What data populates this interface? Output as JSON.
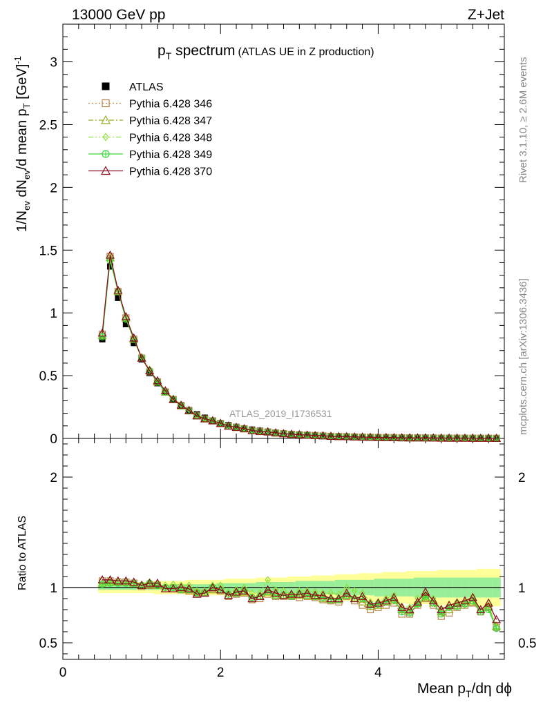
{
  "header": {
    "left": "13000 GeV pp",
    "right": "Z+Jet"
  },
  "side_text": {
    "top": "Rivet 3.1.10, ≥ 2.6M events",
    "bottom": "mcplots.cern.ch [arXiv:1306.3436]"
  },
  "watermark": "ATLAS_2019_I1736531",
  "colors": {
    "atlas": "#000000",
    "s346": "#b8864b",
    "s347": "#9aad1d",
    "s348": "#8ee03c",
    "s349": "#38d838",
    "s370": "#8b0a1e",
    "band_outer": "#ffff99",
    "band_inner": "#99ee99"
  },
  "chart_data": [
    {
      "type": "line",
      "title_main": "p",
      "title_sub": "T",
      "title_rest": " spectrum",
      "title_note": "(ATLAS UE in Z production)",
      "ylabel": "1/N_ev dN_ev/d mean p_T [GeV]^-1",
      "ylim": [
        0,
        3.3
      ],
      "xlim": [
        0,
        5.6
      ],
      "yticks": [
        "0",
        "0.5",
        "1",
        "1.5",
        "2",
        "2.5",
        "3"
      ],
      "legend_position": "top-left",
      "x": [
        0.5,
        0.6,
        0.7,
        0.8,
        0.9,
        1.0,
        1.1,
        1.2,
        1.3,
        1.4,
        1.5,
        1.6,
        1.7,
        1.8,
        1.9,
        2.0,
        2.1,
        2.2,
        2.3,
        2.4,
        2.5,
        2.6,
        2.7,
        2.8,
        2.9,
        3.0,
        3.1,
        3.2,
        3.3,
        3.4,
        3.5,
        3.6,
        3.7,
        3.8,
        3.9,
        4.0,
        4.1,
        4.2,
        4.3,
        4.4,
        4.5,
        4.6,
        4.7,
        4.8,
        4.9,
        5.0,
        5.1,
        5.2,
        5.3,
        5.4,
        5.5
      ],
      "series": [
        {
          "name": "ATLAS",
          "marker": "square",
          "values": [
            0.79,
            1.37,
            1.12,
            0.91,
            0.76,
            0.63,
            0.52,
            0.44,
            0.37,
            0.31,
            0.265,
            0.225,
            0.192,
            0.165,
            0.142,
            0.122,
            0.106,
            0.092,
            0.08,
            0.07,
            0.061,
            0.054,
            0.047,
            0.041,
            0.036,
            0.032,
            0.028,
            0.025,
            0.022,
            0.019,
            0.017,
            0.015,
            0.013,
            0.012,
            0.011,
            0.0095,
            0.0085,
            0.0075,
            0.0067,
            0.006,
            0.0053,
            0.0047,
            0.0042,
            0.0037,
            0.0033,
            0.003,
            0.0027,
            0.0024,
            0.0021,
            0.0019,
            0.0017
          ]
        },
        {
          "name": "Pythia 6.428 346",
          "marker": "open-square",
          "values": [
            0.83,
            1.45,
            1.17,
            0.96,
            0.79,
            0.64,
            0.53,
            0.45,
            0.37,
            0.31,
            0.26,
            0.22,
            0.18,
            0.155,
            0.14,
            0.118,
            0.098,
            0.087,
            0.076,
            0.062,
            0.055,
            0.051,
            0.043,
            0.038,
            0.033,
            0.029,
            0.026,
            0.023,
            0.02,
            0.017,
            0.015,
            0.014,
            0.012,
            0.0105,
            0.0088,
            0.0078,
            0.0072,
            0.0066,
            0.0052,
            0.0046,
            0.0045,
            0.0042,
            0.0036,
            0.0027,
            0.0026,
            0.0025,
            0.0023,
            0.0021,
            0.0016,
            0.0016,
            0.0011
          ]
        },
        {
          "name": "Pythia 6.428 347",
          "marker": "open-triangle",
          "values": [
            0.82,
            1.44,
            1.17,
            0.96,
            0.79,
            0.64,
            0.54,
            0.45,
            0.37,
            0.31,
            0.26,
            0.22,
            0.185,
            0.155,
            0.14,
            0.12,
            0.099,
            0.088,
            0.077,
            0.063,
            0.056,
            0.052,
            0.044,
            0.038,
            0.033,
            0.03,
            0.026,
            0.023,
            0.02,
            0.017,
            0.015,
            0.014,
            0.012,
            0.0108,
            0.0091,
            0.008,
            0.0074,
            0.0068,
            0.0054,
            0.0048,
            0.0046,
            0.0043,
            0.0037,
            0.0029,
            0.0027,
            0.0026,
            0.0024,
            0.0021,
            0.0017,
            0.0016,
            0.0011
          ]
        },
        {
          "name": "Pythia 6.428 348",
          "marker": "open-diamond",
          "values": [
            0.82,
            1.43,
            1.18,
            0.96,
            0.8,
            0.65,
            0.55,
            0.46,
            0.38,
            0.32,
            0.27,
            0.23,
            0.185,
            0.16,
            0.145,
            0.125,
            0.1,
            0.09,
            0.08,
            0.066,
            0.058,
            0.058,
            0.046,
            0.04,
            0.034,
            0.031,
            0.027,
            0.024,
            0.021,
            0.018,
            0.016,
            0.015,
            0.013,
            0.0115,
            0.0096,
            0.0083,
            0.0077,
            0.007,
            0.0056,
            0.005,
            0.0048,
            0.0044,
            0.0038,
            0.003,
            0.0028,
            0.0026,
            0.0024,
            0.0022,
            0.0017,
            0.0016,
            0.0011
          ]
        },
        {
          "name": "Pythia 6.428 349",
          "marker": "open-circle-cross",
          "values": [
            0.81,
            1.42,
            1.17,
            0.95,
            0.79,
            0.64,
            0.54,
            0.45,
            0.37,
            0.31,
            0.26,
            0.22,
            0.182,
            0.156,
            0.142,
            0.12,
            0.1,
            0.088,
            0.078,
            0.064,
            0.056,
            0.052,
            0.044,
            0.038,
            0.033,
            0.03,
            0.026,
            0.023,
            0.02,
            0.017,
            0.015,
            0.014,
            0.012,
            0.0108,
            0.0092,
            0.008,
            0.0074,
            0.0067,
            0.0052,
            0.0046,
            0.0045,
            0.0043,
            0.0036,
            0.0028,
            0.0027,
            0.0025,
            0.0023,
            0.0021,
            0.0016,
            0.0015,
            0.0011
          ]
        },
        {
          "name": "Pythia 6.428 370",
          "marker": "open-triangle",
          "values": [
            0.84,
            1.46,
            1.18,
            0.97,
            0.8,
            0.64,
            0.54,
            0.46,
            0.38,
            0.31,
            0.265,
            0.223,
            0.18,
            0.157,
            0.141,
            0.12,
            0.099,
            0.089,
            0.078,
            0.063,
            0.056,
            0.053,
            0.045,
            0.038,
            0.034,
            0.03,
            0.027,
            0.023,
            0.021,
            0.017,
            0.015,
            0.014,
            0.012,
            0.011,
            0.0093,
            0.0081,
            0.0075,
            0.0069,
            0.0054,
            0.0049,
            0.0047,
            0.0045,
            0.0037,
            0.003,
            0.0028,
            0.0026,
            0.0024,
            0.0022,
            0.0017,
            0.0016,
            0.0012
          ]
        }
      ]
    },
    {
      "type": "line",
      "ylabel": "Ratio to ATLAS",
      "xlabel_main": "Mean p",
      "xlabel_sub": "T",
      "xlabel_rest": "/dη dϕ",
      "ylim": [
        0.35,
        2.35
      ],
      "xlim": [
        0,
        5.6
      ],
      "yticks": [
        "0.5",
        "1",
        "2"
      ],
      "xticks": [
        "0",
        "2",
        "4"
      ],
      "reference": 1.0,
      "x": [
        0.5,
        0.6,
        0.7,
        0.8,
        0.9,
        1.0,
        1.1,
        1.2,
        1.3,
        1.4,
        1.5,
        1.6,
        1.7,
        1.8,
        1.9,
        2.0,
        2.1,
        2.2,
        2.3,
        2.4,
        2.5,
        2.6,
        2.7,
        2.8,
        2.9,
        3.0,
        3.1,
        3.2,
        3.3,
        3.4,
        3.5,
        3.6,
        3.7,
        3.8,
        3.9,
        4.0,
        4.1,
        4.2,
        4.3,
        4.4,
        4.5,
        4.6,
        4.7,
        4.8,
        4.9,
        5.0,
        5.1,
        5.2,
        5.3,
        5.4,
        5.5
      ],
      "band_outer": [
        0.05,
        0.05,
        0.05,
        0.05,
        0.05,
        0.05,
        0.05,
        0.06,
        0.06,
        0.06,
        0.06,
        0.07,
        0.07,
        0.07,
        0.07,
        0.07,
        0.08,
        0.08,
        0.08,
        0.08,
        0.09,
        0.09,
        0.09,
        0.09,
        0.1,
        0.1,
        0.1,
        0.11,
        0.11,
        0.11,
        0.12,
        0.12,
        0.12,
        0.13,
        0.13,
        0.13,
        0.14,
        0.14,
        0.14,
        0.15,
        0.15,
        0.15,
        0.15,
        0.16,
        0.16,
        0.16,
        0.16,
        0.16,
        0.17,
        0.17,
        0.17
      ],
      "band_inner": [
        0.02,
        0.02,
        0.02,
        0.02,
        0.02,
        0.02,
        0.02,
        0.02,
        0.02,
        0.03,
        0.03,
        0.03,
        0.03,
        0.03,
        0.03,
        0.04,
        0.04,
        0.04,
        0.04,
        0.04,
        0.05,
        0.05,
        0.05,
        0.05,
        0.05,
        0.06,
        0.06,
        0.06,
        0.06,
        0.06,
        0.07,
        0.07,
        0.07,
        0.07,
        0.07,
        0.08,
        0.08,
        0.08,
        0.08,
        0.08,
        0.09,
        0.09,
        0.09,
        0.09,
        0.09,
        0.09,
        0.09,
        0.09,
        0.09,
        0.09,
        0.09
      ],
      "series": [
        {
          "name": "Pythia 6.428 346",
          "values": [
            1.06,
            1.06,
            1.05,
            1.05,
            1.04,
            1.01,
            1.02,
            1.02,
            0.99,
            0.99,
            0.98,
            0.97,
            0.95,
            0.95,
            0.99,
            0.97,
            0.92,
            0.94,
            0.95,
            0.89,
            0.9,
            0.94,
            0.92,
            0.92,
            0.92,
            0.91,
            0.92,
            0.91,
            0.89,
            0.88,
            0.87,
            0.92,
            0.88,
            0.84,
            0.8,
            0.82,
            0.84,
            0.86,
            0.76,
            0.76,
            0.84,
            0.9,
            0.84,
            0.74,
            0.77,
            0.82,
            0.84,
            0.86,
            0.78,
            0.82,
            0.64
          ]
        },
        {
          "name": "Pythia 6.428 347",
          "values": [
            1.04,
            1.05,
            1.05,
            1.05,
            1.04,
            1.02,
            1.03,
            1.02,
            0.99,
            0.99,
            0.99,
            0.98,
            0.96,
            0.96,
            0.98,
            0.98,
            0.93,
            0.95,
            0.96,
            0.9,
            0.92,
            0.96,
            0.93,
            0.93,
            0.93,
            0.93,
            0.93,
            0.92,
            0.9,
            0.89,
            0.89,
            0.93,
            0.9,
            0.87,
            0.83,
            0.84,
            0.87,
            0.88,
            0.8,
            0.79,
            0.86,
            0.91,
            0.86,
            0.78,
            0.8,
            0.84,
            0.86,
            0.87,
            0.8,
            0.83,
            0.65
          ]
        },
        {
          "name": "Pythia 6.428 348",
          "values": [
            1.04,
            1.04,
            1.06,
            1.06,
            1.05,
            1.03,
            1.05,
            1.04,
            1.02,
            1.03,
            1.02,
            1.02,
            0.97,
            0.97,
            1.02,
            1.02,
            0.96,
            0.98,
            1.0,
            0.95,
            0.95,
            1.07,
            0.98,
            0.97,
            0.94,
            0.97,
            0.97,
            0.96,
            0.95,
            0.95,
            0.94,
            1.0,
            0.97,
            0.95,
            0.87,
            0.87,
            0.9,
            0.93,
            0.83,
            0.82,
            0.9,
            0.94,
            0.9,
            0.81,
            0.84,
            0.87,
            0.88,
            0.92,
            0.8,
            0.84,
            0.64
          ]
        },
        {
          "name": "Pythia 6.428 349",
          "values": [
            1.03,
            1.04,
            1.04,
            1.04,
            1.04,
            1.02,
            1.04,
            1.02,
            1.0,
            1.0,
            0.98,
            0.98,
            0.95,
            0.95,
            1.0,
            0.98,
            0.94,
            0.95,
            0.97,
            0.91,
            0.92,
            0.96,
            0.93,
            0.93,
            0.92,
            0.94,
            0.93,
            0.92,
            0.91,
            0.89,
            0.89,
            0.93,
            0.9,
            0.9,
            0.84,
            0.85,
            0.87,
            0.89,
            0.78,
            0.77,
            0.85,
            0.92,
            0.86,
            0.76,
            0.82,
            0.83,
            0.85,
            0.88,
            0.78,
            0.8,
            0.63
          ]
        },
        {
          "name": "Pythia 6.428 370",
          "values": [
            1.07,
            1.07,
            1.06,
            1.06,
            1.05,
            1.02,
            1.04,
            1.04,
            0.99,
            0.99,
            1.0,
            0.99,
            0.94,
            0.95,
            1.0,
            0.98,
            0.93,
            0.96,
            0.97,
            0.9,
            0.92,
            0.98,
            0.95,
            0.93,
            0.94,
            0.94,
            0.95,
            0.93,
            0.93,
            0.9,
            0.9,
            0.95,
            0.9,
            0.92,
            0.85,
            0.86,
            0.88,
            0.91,
            0.82,
            0.8,
            0.87,
            0.96,
            0.88,
            0.8,
            0.84,
            0.86,
            0.88,
            0.91,
            0.8,
            0.86,
            0.71
          ]
        }
      ]
    }
  ]
}
